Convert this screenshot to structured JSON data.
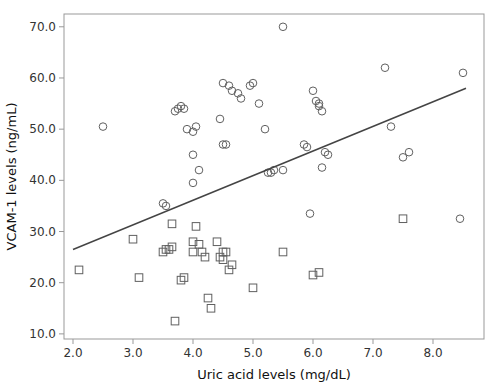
{
  "chart_data": {
    "type": "scatter",
    "xlabel": "Uric acid levels (mg/dL)",
    "ylabel": "VCAM-1 levels (ng/mL)",
    "xlim": [
      1.85,
      8.85
    ],
    "ylim": [
      9.0,
      72.5
    ],
    "xticks": [
      {
        "value": 2.0,
        "label": "2.0"
      },
      {
        "value": 3.0,
        "label": "3.0"
      },
      {
        "value": 4.0,
        "label": "4.0"
      },
      {
        "value": 5.0,
        "label": "5.0"
      },
      {
        "value": 6.0,
        "label": "6.0"
      },
      {
        "value": 7.0,
        "label": "7.0"
      },
      {
        "value": 8.0,
        "label": "8.0"
      }
    ],
    "yticks": [
      {
        "value": 10.0,
        "label": "10.0"
      },
      {
        "value": 20.0,
        "label": "20.0"
      },
      {
        "value": 30.0,
        "label": "30.0"
      },
      {
        "value": 40.0,
        "label": "40.0"
      },
      {
        "value": 50.0,
        "label": "50.0"
      },
      {
        "value": 60.0,
        "label": "60.0"
      },
      {
        "value": 70.0,
        "label": "70.0"
      }
    ],
    "grid": false,
    "series": [
      {
        "type": "scatter",
        "marker": "circle",
        "color": "#606060",
        "x": [
          2.5,
          3.5,
          3.55,
          3.7,
          3.75,
          3.8,
          3.85,
          3.9,
          4.0,
          4.05,
          4.0,
          4.1,
          4.0,
          4.5,
          4.6,
          4.65,
          4.75,
          4.8,
          4.45,
          4.5,
          4.55,
          4.95,
          5.0,
          5.1,
          5.2,
          5.25,
          5.3,
          5.35,
          5.5,
          5.5,
          5.85,
          5.9,
          6.0,
          6.05,
          6.1,
          6.1,
          6.15,
          5.95,
          6.2,
          6.25,
          6.15,
          7.2,
          7.3,
          7.5,
          7.6,
          8.5,
          8.45
        ],
        "values": [
          50.5,
          35.5,
          35.0,
          53.5,
          54.0,
          54.5,
          54.0,
          50.0,
          49.5,
          50.5,
          45.0,
          42.0,
          39.5,
          59.0,
          58.5,
          57.5,
          57.0,
          56.0,
          52.0,
          47.0,
          47.0,
          58.5,
          59.0,
          55.0,
          50.0,
          41.5,
          41.5,
          42.0,
          70.0,
          42.0,
          47.0,
          46.5,
          57.5,
          55.5,
          55.0,
          54.5,
          53.5,
          33.5,
          45.5,
          45.0,
          42.5,
          62.0,
          50.5,
          44.5,
          45.5,
          61.0,
          32.5
        ]
      },
      {
        "type": "scatter",
        "marker": "square",
        "color": "#606060",
        "x": [
          2.1,
          3.0,
          3.1,
          3.5,
          3.55,
          3.6,
          3.65,
          3.65,
          3.7,
          3.8,
          3.85,
          4.0,
          4.0,
          4.05,
          4.1,
          4.15,
          4.2,
          4.25,
          4.3,
          4.4,
          4.45,
          4.5,
          4.55,
          4.6,
          4.65,
          4.5,
          5.0,
          5.5,
          6.0,
          6.1,
          7.5
        ],
        "values": [
          22.5,
          28.5,
          21.0,
          26.0,
          26.5,
          26.5,
          27.0,
          31.5,
          12.5,
          20.5,
          21.0,
          26.0,
          28.0,
          31.0,
          27.5,
          26.0,
          25.0,
          17.0,
          15.0,
          28.0,
          25.0,
          24.5,
          26.0,
          22.5,
          23.5,
          26.0,
          19.0,
          26.0,
          21.5,
          22.0,
          32.5
        ]
      },
      {
        "type": "line",
        "color": "#444444",
        "x": [
          2.0,
          8.55
        ],
        "values": [
          26.5,
          58.0
        ]
      }
    ]
  }
}
